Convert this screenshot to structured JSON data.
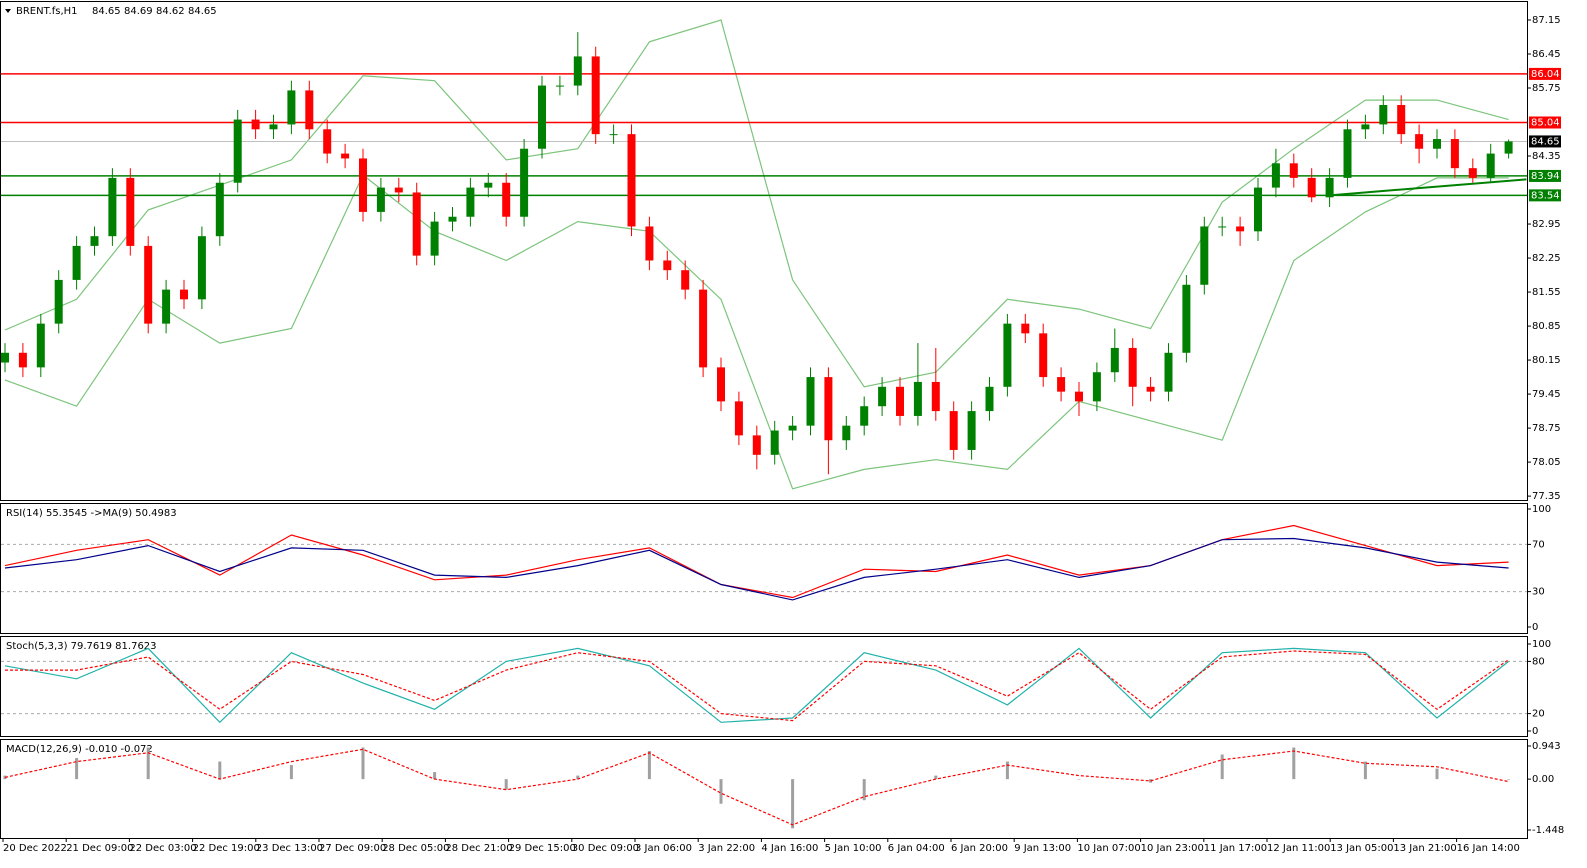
{
  "chart_data": [
    {
      "type": "candlestick",
      "title": "BRENT.fs,H1",
      "header_values": [
        84.65,
        84.69,
        84.62,
        84.65
      ],
      "open": [
        80.1,
        80.3,
        80.0,
        80.9,
        81.8,
        82.5,
        82.7,
        83.9,
        82.5,
        80.9,
        81.6,
        81.4,
        82.7,
        83.8,
        85.1,
        84.9,
        85.0,
        85.7,
        84.9,
        84.4,
        84.3,
        83.2,
        83.7,
        83.6,
        82.3,
        83.0,
        83.1,
        83.7,
        83.8,
        83.1,
        84.5,
        85.8,
        85.8,
        86.4,
        84.8,
        84.8,
        82.9,
        82.2,
        82.0,
        81.6,
        80.0,
        79.3,
        78.6,
        78.2,
        78.7,
        78.8,
        79.8,
        78.5,
        78.8,
        79.2,
        79.6,
        79.0,
        79.7,
        79.1,
        78.3,
        79.1,
        79.6,
        80.9,
        80.7,
        79.8,
        79.5,
        79.3,
        79.9,
        80.4,
        79.6,
        79.5,
        80.3,
        81.7,
        82.9,
        82.9,
        82.8,
        83.7,
        84.2,
        83.9,
        83.5,
        83.9,
        84.9,
        85.0,
        85.4,
        84.8,
        84.5,
        84.7,
        84.1,
        83.9,
        84.4
      ],
      "high": [
        80.5,
        80.5,
        81.1,
        82.0,
        82.7,
        82.9,
        84.1,
        84.1,
        82.7,
        81.8,
        81.8,
        82.9,
        84.0,
        85.3,
        85.3,
        85.2,
        85.9,
        85.9,
        85.1,
        84.6,
        84.5,
        83.9,
        83.9,
        83.8,
        83.2,
        83.3,
        83.9,
        84.0,
        84.0,
        84.7,
        86.0,
        86.0,
        86.9,
        86.6,
        85.0,
        85.0,
        83.1,
        82.4,
        82.2,
        81.8,
        80.2,
        79.5,
        78.8,
        78.9,
        79.0,
        80.0,
        80.0,
        79.0,
        79.4,
        79.8,
        79.8,
        80.5,
        80.4,
        79.3,
        79.3,
        79.8,
        81.1,
        81.1,
        80.9,
        80.0,
        79.7,
        80.1,
        80.8,
        80.6,
        79.8,
        80.5,
        81.9,
        83.1,
        83.1,
        83.1,
        83.9,
        84.5,
        84.4,
        84.1,
        84.1,
        85.1,
        85.2,
        85.6,
        85.6,
        85.0,
        84.9,
        84.9,
        84.3,
        84.6,
        84.69
      ],
      "low": [
        79.9,
        79.8,
        79.8,
        80.7,
        81.6,
        82.3,
        82.5,
        82.3,
        80.7,
        80.7,
        81.2,
        81.2,
        82.5,
        83.6,
        84.7,
        84.7,
        84.8,
        84.7,
        84.2,
        84.1,
        83.0,
        83.0,
        83.4,
        82.1,
        82.1,
        82.8,
        82.9,
        83.5,
        82.9,
        82.9,
        84.3,
        85.6,
        85.6,
        84.6,
        84.6,
        82.7,
        82.0,
        81.8,
        81.4,
        79.8,
        79.1,
        78.4,
        77.9,
        78.0,
        78.5,
        78.6,
        77.8,
        78.3,
        78.6,
        79.0,
        78.8,
        78.8,
        78.9,
        78.1,
        78.1,
        78.9,
        79.4,
        80.5,
        79.6,
        79.3,
        79.0,
        79.1,
        79.7,
        79.2,
        79.3,
        79.3,
        80.1,
        81.5,
        82.7,
        82.5,
        82.6,
        83.5,
        83.7,
        83.4,
        83.3,
        83.7,
        84.7,
        84.8,
        84.6,
        84.2,
        84.3,
        83.9,
        83.8,
        83.8,
        84.3
      ],
      "close": [
        80.3,
        80.0,
        80.9,
        81.8,
        82.5,
        82.7,
        83.9,
        82.5,
        80.9,
        81.6,
        81.4,
        82.7,
        83.8,
        85.1,
        84.9,
        85.0,
        85.7,
        84.9,
        84.4,
        84.3,
        83.2,
        83.7,
        83.6,
        82.3,
        83.0,
        83.1,
        83.7,
        83.8,
        83.1,
        84.5,
        85.8,
        85.8,
        86.4,
        84.8,
        84.8,
        82.9,
        82.2,
        82.0,
        81.6,
        80.0,
        79.3,
        78.6,
        78.2,
        78.7,
        78.8,
        79.8,
        78.5,
        78.8,
        79.2,
        79.6,
        79.0,
        79.7,
        79.1,
        78.3,
        79.1,
        79.6,
        80.9,
        80.7,
        79.8,
        79.5,
        79.3,
        79.9,
        80.4,
        79.6,
        79.5,
        80.3,
        81.7,
        82.9,
        82.9,
        82.8,
        83.7,
        84.2,
        83.9,
        83.5,
        83.9,
        84.9,
        85.0,
        85.4,
        84.8,
        84.5,
        84.7,
        84.1,
        83.9,
        84.4,
        84.65
      ],
      "up_color": "#008000",
      "down_color": "#ff0000",
      "ylim": [
        77.27,
        87.52
      ],
      "yticks": [
        87.15,
        86.45,
        85.75,
        84.35,
        82.95,
        82.25,
        81.55,
        80.85,
        80.15,
        79.45,
        78.75,
        78.05,
        77.35
      ],
      "bands": {
        "color": "#7cc47c",
        "x": [
          0,
          4,
          8,
          12,
          16,
          20,
          24,
          28,
          32,
          36,
          40,
          44,
          48,
          52,
          56,
          60,
          64,
          68,
          72,
          76,
          80,
          84
        ],
        "upper": [
          80.77,
          81.4,
          83.24,
          83.75,
          84.27,
          86.0,
          85.9,
          84.27,
          84.5,
          86.7,
          87.15,
          81.8,
          79.6,
          79.9,
          81.4,
          81.2,
          80.8,
          83.4,
          84.5,
          85.5,
          85.5,
          85.1
        ],
        "lower": [
          79.74,
          79.2,
          81.4,
          80.5,
          80.8,
          83.96,
          82.8,
          82.2,
          83.0,
          82.8,
          81.4,
          77.5,
          77.9,
          78.1,
          77.9,
          79.3,
          78.9,
          78.5,
          82.2,
          83.2,
          83.9,
          83.9
        ]
      },
      "levels": [
        {
          "value": 86.04,
          "color": "#ff0000"
        },
        {
          "value": 85.04,
          "color": "#ff0000"
        },
        {
          "value": 83.94,
          "color": "#008000"
        },
        {
          "value": 83.54,
          "color": "#008000"
        }
      ],
      "last_price": {
        "value": 84.65,
        "color": "#c0c0c0"
      },
      "trendline": {
        "x": [
          74,
          85
        ],
        "y": [
          83.54,
          83.87
        ],
        "color": "#008000"
      },
      "xtick_labels": [
        "20 Dec 2022",
        "21 Dec 09:00",
        "22 Dec 03:00",
        "22 Dec 19:00",
        "23 Dec 13:00",
        "27 Dec 09:00",
        "28 Dec 05:00",
        "28 Dec 21:00",
        "29 Dec 15:00",
        "30 Dec 09:00",
        "3 Jan 06:00",
        "3 Jan 22:00",
        "4 Jan 16:00",
        "5 Jan 10:00",
        "6 Jan 04:00",
        "6 Jan 20:00",
        "9 Jan 13:00",
        "10 Jan 07:00",
        "10 Jan 23:00",
        "11 Jan 17:00",
        "12 Jan 11:00",
        "13 Jan 05:00",
        "13 Jan 21:00",
        "16 Jan 14:00"
      ]
    },
    {
      "type": "line",
      "title": "RSI(14) 55.3545 ->MA(9) 50.4983",
      "ylim": [
        0,
        100
      ],
      "yticks": [
        100,
        70,
        30,
        0
      ],
      "levels": [
        70,
        30
      ],
      "x": [
        0,
        4,
        8,
        12,
        16,
        20,
        24,
        28,
        32,
        36,
        40,
        44,
        48,
        52,
        56,
        60,
        64,
        68,
        72,
        76,
        80,
        84
      ],
      "series": [
        {
          "color": "#ff0000",
          "dash": false,
          "values": [
            52,
            65,
            74,
            44,
            78,
            61,
            40,
            44,
            57,
            67,
            36,
            25,
            49,
            47,
            61,
            44,
            52,
            74,
            86,
            69,
            52,
            55
          ]
        },
        {
          "color": "#00008b",
          "dash": false,
          "values": [
            50,
            57,
            69,
            47,
            67,
            65,
            44,
            42,
            52,
            65,
            36,
            23,
            42,
            49,
            57,
            42,
            52,
            74,
            75,
            67,
            55,
            50
          ]
        }
      ]
    },
    {
      "type": "line",
      "title": "Stoch(5,3,3) 79.7619 81.7623",
      "ylim": [
        0,
        100
      ],
      "yticks": [
        100,
        80,
        20,
        0
      ],
      "levels": [
        80,
        20
      ],
      "x": [
        0,
        4,
        8,
        12,
        16,
        20,
        24,
        28,
        32,
        36,
        40,
        44,
        48,
        52,
        56,
        60,
        64,
        68,
        72,
        76,
        80,
        84
      ],
      "series": [
        {
          "color": "#20b2aa",
          "dash": false,
          "values": [
            75,
            60,
            95,
            10,
            90,
            55,
            25,
            80,
            95,
            75,
            10,
            15,
            90,
            70,
            30,
            95,
            15,
            90,
            95,
            90,
            15,
            80
          ]
        },
        {
          "color": "#ff0000",
          "dash": true,
          "values": [
            70,
            70,
            85,
            25,
            80,
            65,
            35,
            70,
            90,
            80,
            20,
            12,
            80,
            75,
            40,
            90,
            25,
            85,
            92,
            88,
            25,
            82
          ]
        }
      ]
    },
    {
      "type": "macd",
      "title": "MACD(12,26,9) -0.010 -0.072",
      "ylim": [
        -1.448,
        0.943
      ],
      "yticks": [
        0.943,
        {
          "value": 0,
          "label": "0.00"
        },
        -1.448
      ],
      "levels": [],
      "x": [
        0,
        4,
        8,
        12,
        16,
        20,
        24,
        28,
        32,
        36,
        40,
        44,
        48,
        52,
        56,
        60,
        64,
        68,
        72,
        76,
        80,
        84
      ],
      "histogram": {
        "color": "#a0a0a0",
        "values": [
          0.1,
          0.6,
          0.9,
          0.5,
          0.4,
          0.9,
          0.2,
          -0.3,
          0.1,
          0.8,
          -0.7,
          -1.4,
          -0.6,
          0.1,
          0.5,
          0.0,
          -0.1,
          0.7,
          0.9,
          0.5,
          0.3,
          -0.01
        ]
      },
      "series": [
        {
          "color": "#ff0000",
          "dash": true,
          "values": [
            0.05,
            0.5,
            0.75,
            0.0,
            0.5,
            0.85,
            0.0,
            -0.3,
            0.0,
            0.75,
            -0.4,
            -1.3,
            -0.5,
            0.0,
            0.4,
            0.1,
            -0.05,
            0.55,
            0.8,
            0.45,
            0.35,
            -0.07
          ]
        }
      ]
    }
  ]
}
